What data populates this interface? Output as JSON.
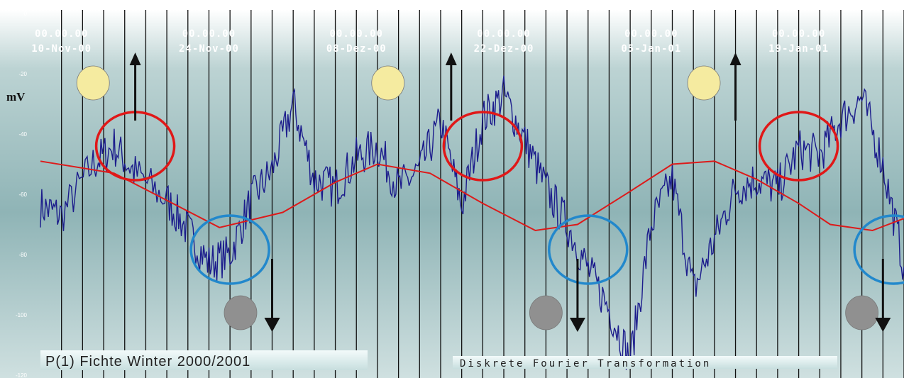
{
  "chart_data": {
    "type": "line",
    "title": "",
    "ylabel": "mV",
    "x_ticks": [
      {
        "time": "00.00.00",
        "date": "10-Nov-00"
      },
      {
        "time": "00.00.00",
        "date": "24-Nov-00"
      },
      {
        "time": "00.00.00",
        "date": "08-Dez-00"
      },
      {
        "time": "00.00.00",
        "date": "22-Dez-00"
      },
      {
        "time": "00.00.00",
        "date": "05-Jan-01"
      },
      {
        "time": "00.00.00",
        "date": "19-Jan-01"
      }
    ],
    "x_tick_labels_visible": [
      "00.00.00 0-Nov-00",
      "00.00.00 24-Nov-00",
      "00.00.00 08-Dez-00",
      "00.00.00 22-Dez-00",
      "00.00.00 05-Jan-01",
      "00.00.00 19-Jan-01"
    ],
    "y_ticks": [
      0,
      -20,
      -40,
      -60,
      -80,
      -100,
      -120
    ],
    "y_tick_labels": [
      "0",
      "-20",
      "-40",
      "-60",
      "-80",
      "-100",
      "-120"
    ],
    "ylim": [
      -120,
      0
    ],
    "xlim": [
      "2000-11-08",
      "2001-01-29"
    ],
    "grid": "vertical",
    "series": [
      {
        "role": "measured",
        "color": "#1c1c8c",
        "x": [
          "2000-11-08",
          "2000-11-10",
          "2000-11-13",
          "2000-11-15",
          "2000-11-17",
          "2000-11-20",
          "2000-11-22",
          "2000-11-24",
          "2000-11-26",
          "2000-11-28",
          "2000-11-30",
          "2000-12-02",
          "2000-12-04",
          "2000-12-06",
          "2000-12-08",
          "2000-12-10",
          "2000-12-12",
          "2000-12-14",
          "2000-12-16",
          "2000-12-18",
          "2000-12-20",
          "2000-12-22",
          "2000-12-24",
          "2000-12-26",
          "2000-12-28",
          "2000-12-30",
          "2001-01-01",
          "2001-01-03",
          "2001-01-05",
          "2001-01-07",
          "2001-01-09",
          "2001-01-11",
          "2001-01-13",
          "2001-01-15",
          "2001-01-17",
          "2001-01-19",
          "2001-01-21",
          "2001-01-23",
          "2001-01-25",
          "2001-01-27",
          "2001-01-29"
        ],
        "values": [
          -64,
          -67,
          -50,
          -44,
          -53,
          -62,
          -72,
          -83,
          -80,
          -62,
          -52,
          -30,
          -55,
          -58,
          -48,
          -44,
          -58,
          -52,
          -36,
          -64,
          -35,
          -27,
          -42,
          -58,
          -70,
          -85,
          -98,
          -115,
          -70,
          -55,
          -92,
          -75,
          -58,
          -55,
          -58,
          -45,
          -47,
          -35,
          -28,
          -50,
          -84
        ]
      },
      {
        "role": "discrete-fourier-fit",
        "color": "#dd1a1a",
        "x": [
          "2000-11-08",
          "2000-11-15",
          "2000-11-20",
          "2000-11-25",
          "2000-12-01",
          "2000-12-06",
          "2000-12-10",
          "2000-12-15",
          "2000-12-20",
          "2000-12-25",
          "2000-12-29",
          "2001-01-03",
          "2001-01-07",
          "2001-01-11",
          "2001-01-15",
          "2001-01-19",
          "2001-01-22",
          "2001-01-26",
          "2001-01-29"
        ],
        "values": [
          -49,
          -53,
          -62,
          -71,
          -66,
          -56,
          -50,
          -53,
          -63,
          -72,
          -70,
          -59,
          -50,
          -49,
          -55,
          -63,
          -70,
          -72,
          -68
        ]
      }
    ],
    "annotations": {
      "caption_left": "P(1) Fichte Winter 2000/2001",
      "caption_right": "Diskrete Fourier Transformation",
      "symbols": [
        {
          "type": "full-moon",
          "near": "2000-11-13"
        },
        {
          "type": "full-moon",
          "near": "2000-12-11"
        },
        {
          "type": "full-moon",
          "near": "2001-01-10"
        },
        {
          "type": "new-moon",
          "near": "2000-11-27"
        },
        {
          "type": "new-moon",
          "near": "2000-12-26"
        },
        {
          "type": "new-moon",
          "near": "2001-01-25"
        }
      ],
      "highlight_circles": [
        {
          "color": "red",
          "near": "2000-11-17"
        },
        {
          "color": "red",
          "near": "2000-12-20"
        },
        {
          "color": "red",
          "near": "2001-01-19"
        },
        {
          "color": "blue",
          "near": "2000-11-26"
        },
        {
          "color": "blue",
          "near": "2000-12-30"
        },
        {
          "color": "blue",
          "near": "2001-01-28"
        }
      ],
      "arrows": [
        {
          "direction": "up",
          "near": "2000-11-17"
        },
        {
          "direction": "up",
          "near": "2000-12-17"
        },
        {
          "direction": "up",
          "near": "2001-01-13"
        },
        {
          "direction": "down",
          "near": "2000-11-30"
        },
        {
          "direction": "down",
          "near": "2000-12-29"
        },
        {
          "direction": "down",
          "near": "2001-01-27"
        }
      ]
    }
  },
  "colors": {
    "background_top": "#ffffff",
    "background_mid": "#a8c6c6",
    "background_bottom": "#d6e6e6",
    "gridline": "#111111",
    "measured_series": "#1c1c8c",
    "fit_series": "#dd1a1a",
    "full_moon": "#f5eba0",
    "new_moon": "#909090",
    "circle_red": "#e01818",
    "circle_blue": "#2288cc",
    "arrow": "#111111"
  }
}
